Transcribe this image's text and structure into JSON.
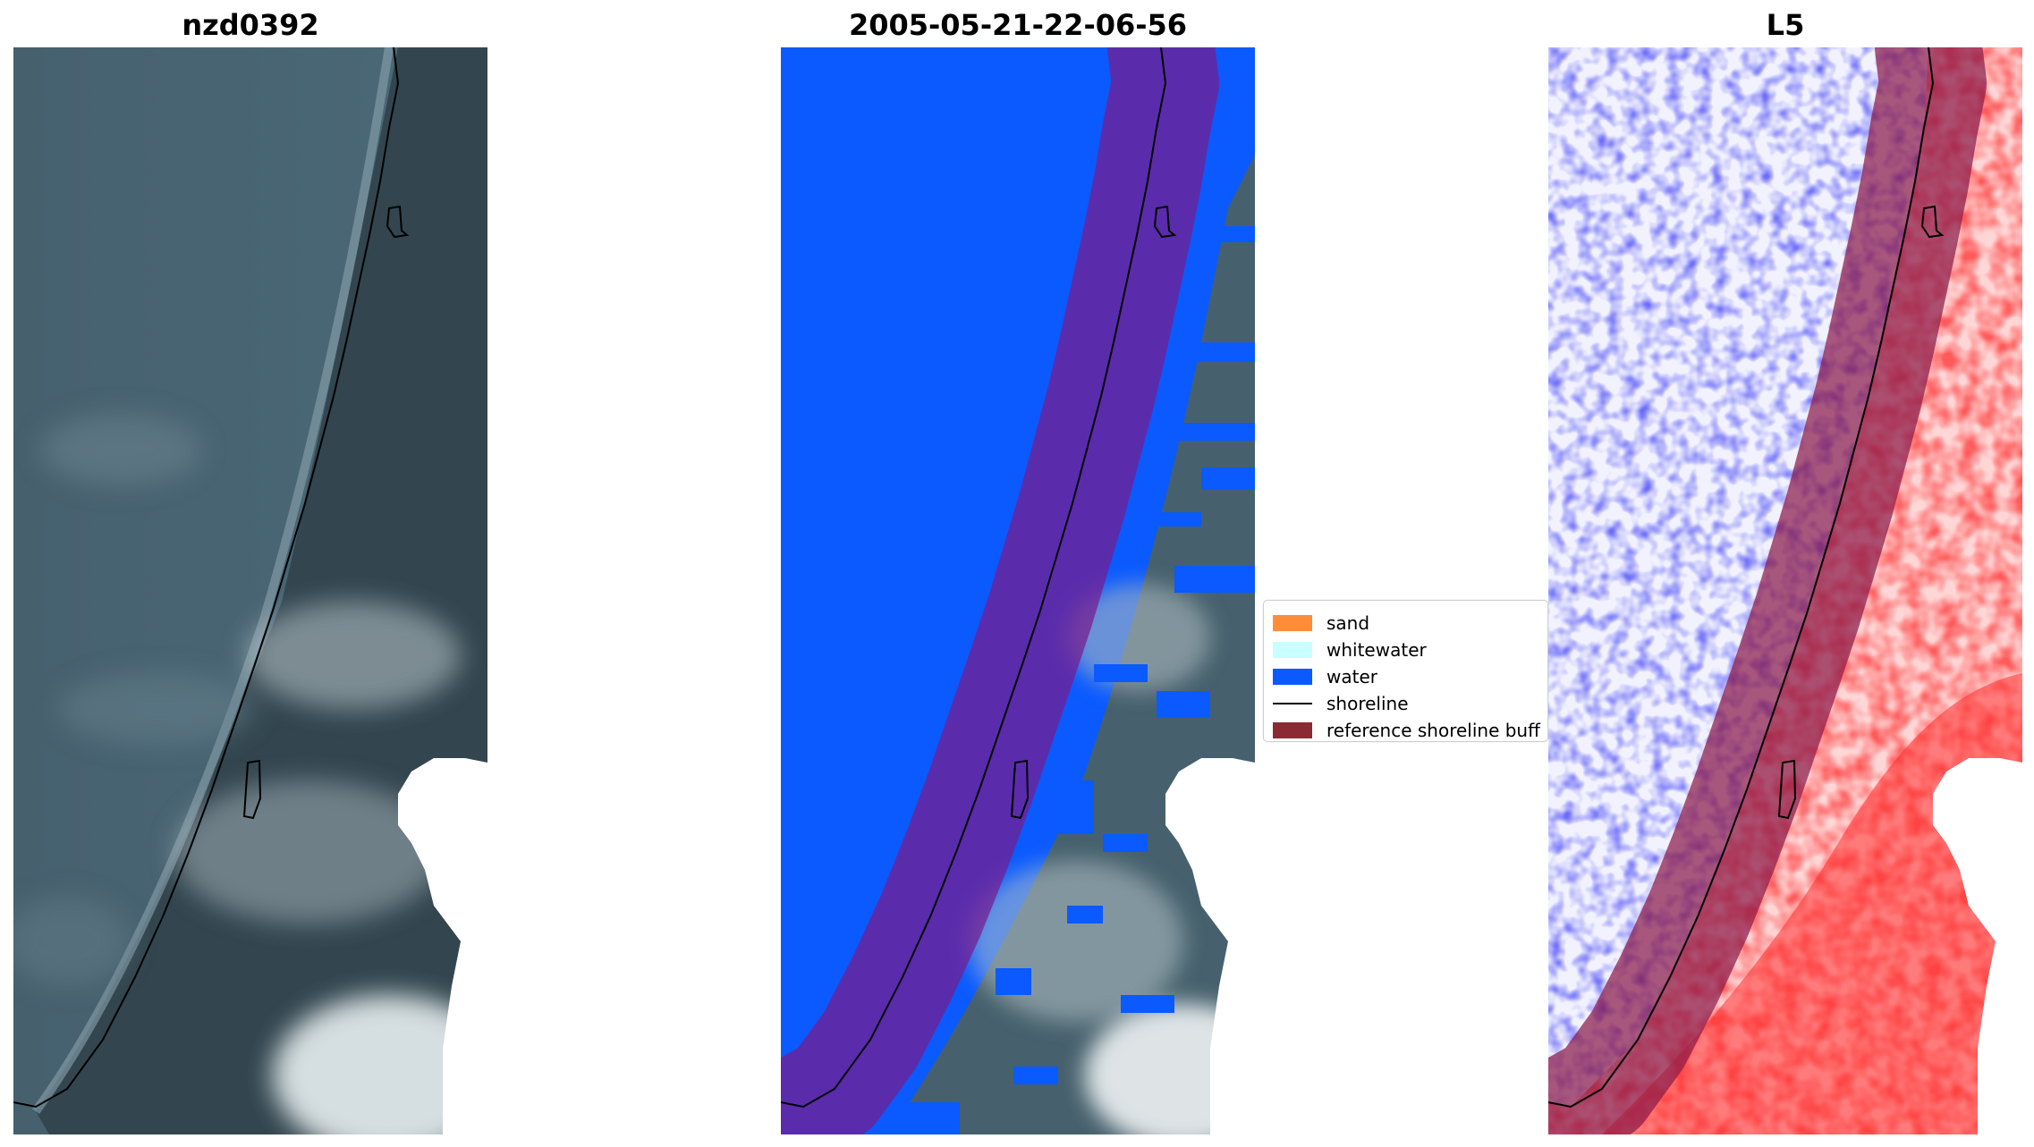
{
  "titles": {
    "left": "nzd0392",
    "middle": "2005-05-21-22-06-56",
    "right": "L5"
  },
  "legend": {
    "items": [
      {
        "label": "sand",
        "color": "#ff8c38",
        "kind": "patch"
      },
      {
        "label": "whitewater",
        "color": "#c8ffff",
        "kind": "patch"
      },
      {
        "label": "water",
        "color": "#0a5aff",
        "kind": "patch"
      },
      {
        "label": "shoreline",
        "color": "#000000",
        "kind": "line"
      },
      {
        "label": "reference shoreline buff",
        "color": "#8b2a33",
        "kind": "patch"
      }
    ]
  },
  "colors": {
    "sea": "#3f5a6a",
    "land": "#344852",
    "cloud": "#e9eef0",
    "water_class": "#0a5aff",
    "buffer_overlay": "#7a1a8c",
    "index_red": "#ff2020",
    "index_blue": "#2a2aff"
  }
}
